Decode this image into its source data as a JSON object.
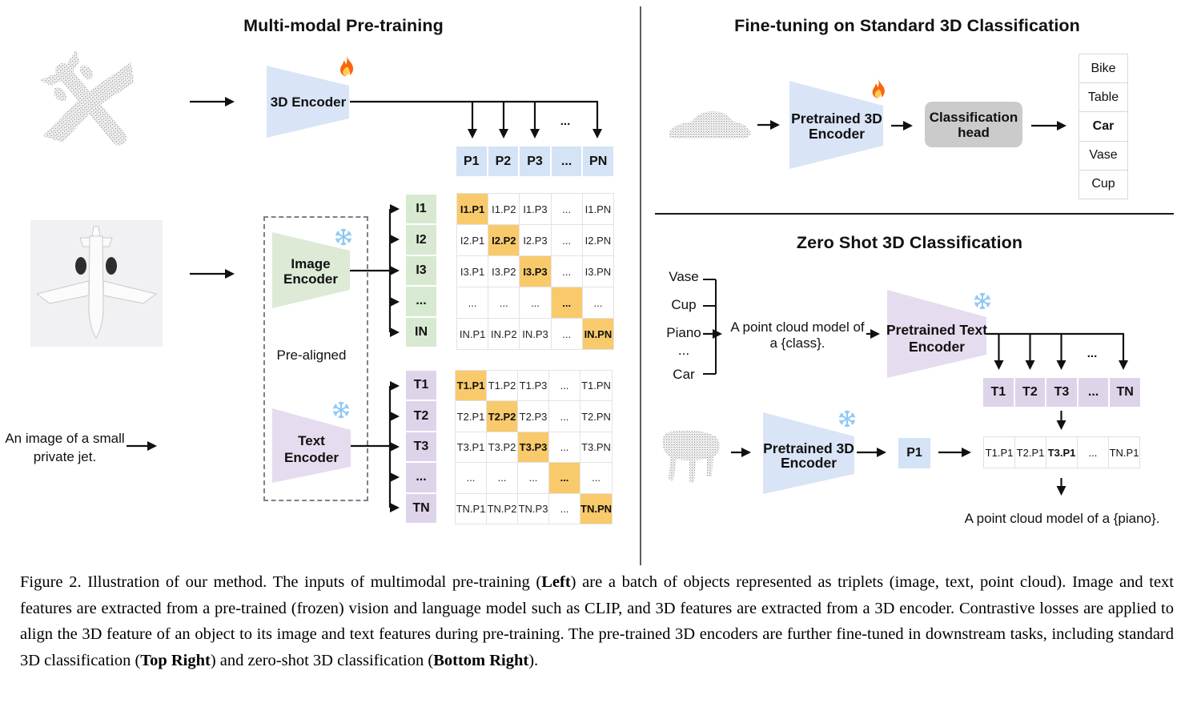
{
  "left_panel": {
    "title": "Multi-modal Pre-training",
    "encoder_3d": {
      "label": "3D Encoder"
    },
    "image_encoder": {
      "line1": "Image",
      "line2": "Encoder"
    },
    "text_encoder": {
      "line1": "Text",
      "line2": "Encoder"
    },
    "pre_aligned_label": "Pre-aligned",
    "text_input": {
      "line1": "An image of a small",
      "line2": "private jet."
    },
    "ellipsis": "...",
    "p_row": [
      "P1",
      "P2",
      "P3",
      "...",
      "PN"
    ],
    "i_column": [
      "I1",
      "I2",
      "I3",
      "...",
      "IN"
    ],
    "t_column": [
      "T1",
      "T2",
      "T3",
      "...",
      "TN"
    ],
    "i_matrix": [
      [
        "I1.P1",
        "I1.P2",
        "I1.P3",
        "...",
        "I1.PN"
      ],
      [
        "I2.P1",
        "I2.P2",
        "I2.P3",
        "...",
        "I2.PN"
      ],
      [
        "I3.P1",
        "I3.P2",
        "I3.P3",
        "...",
        "I3.PN"
      ],
      [
        "...",
        "...",
        "...",
        "...",
        "..."
      ],
      [
        "IN.P1",
        "IN.P2",
        "IN.P3",
        "...",
        "IN.PN"
      ]
    ],
    "t_matrix": [
      [
        "T1.P1",
        "T1.P2",
        "T1.P3",
        "...",
        "T1.PN"
      ],
      [
        "T2.P1",
        "T2.P2",
        "T2.P3",
        "...",
        "T2.PN"
      ],
      [
        "T3.P1",
        "T3.P2",
        "T3.P3",
        "...",
        "T3.PN"
      ],
      [
        "...",
        "...",
        "...",
        "...",
        "..."
      ],
      [
        "TN.P1",
        "TN.P2",
        "TN.P3",
        "...",
        "TN.PN"
      ]
    ],
    "highlight_diagonal": true
  },
  "top_right_panel": {
    "title": "Fine-tuning on Standard 3D Classification",
    "encoder": {
      "line1": "Pretrained 3D",
      "line2": "Encoder"
    },
    "class_head": {
      "line1": "Classification",
      "line2": "head"
    },
    "classes": [
      {
        "label": "Bike",
        "highlight": false
      },
      {
        "label": "Table",
        "highlight": false
      },
      {
        "label": "Car",
        "highlight": true
      },
      {
        "label": "Vase",
        "highlight": false
      },
      {
        "label": "Cup",
        "highlight": false
      }
    ]
  },
  "bottom_right_panel": {
    "title": "Zero Shot 3D Classification",
    "class_words": [
      "Vase",
      "Cup",
      "Piano",
      "...",
      "Car"
    ],
    "prompt": {
      "line1": "A point cloud model of",
      "line2": "a {class}."
    },
    "text_encoder": {
      "line1": "Pretrained Text",
      "line2": "Encoder"
    },
    "encoder_3d": {
      "line1": "Pretrained 3D",
      "line2": "Encoder"
    },
    "p1_label": "P1",
    "ellipsis": "...",
    "t_row": [
      "T1",
      "T2",
      "T3",
      "...",
      "TN"
    ],
    "result_row": [
      {
        "label": "T1.P1",
        "highlight": false
      },
      {
        "label": "T2.P1",
        "highlight": false
      },
      {
        "label": "T3.P1",
        "highlight": true
      },
      {
        "label": "...",
        "highlight": false
      },
      {
        "label": "TN.P1",
        "highlight": false
      }
    ],
    "result_caption": "A point cloud model of a {piano}."
  },
  "caption": {
    "segments": [
      {
        "text": "Figure 2. Illustration of our method. The inputs of multimodal pre-training (",
        "bold": false
      },
      {
        "text": "Left",
        "bold": true
      },
      {
        "text": ") are a batch of objects represented as triplets (image, text, point cloud).  Image and text features are extracted from a pre-trained (frozen) vision and language model such as CLIP, and 3D features are extracted from a 3D encoder.  Contrastive losses are applied to align the 3D feature of an object to its image and text features during pre-training.  The pre-trained 3D encoders are further fine-tuned in downstream tasks, including standard 3D classification (",
        "bold": false
      },
      {
        "text": "Top Right",
        "bold": true
      },
      {
        "text": ") and zero-shot 3D classification (",
        "bold": false
      },
      {
        "text": "Bottom Right",
        "bold": true
      },
      {
        "text": ").",
        "bold": false
      }
    ]
  },
  "icons": {
    "trainable": "fire-icon",
    "frozen": "snowflake-icon",
    "inputs": [
      "airplane-point-cloud",
      "airplane-photo",
      "car-point-cloud",
      "piano-point-cloud"
    ]
  },
  "colors": {
    "highlight_orange": "#f9ca6b",
    "encoder_blue": "#d9e5f6",
    "image_green": "#dcead6",
    "text_purple": "#e6dcef",
    "cell_blue": "#d4e3f6",
    "cell_green": "#d8e9d2",
    "cell_purple": "#ded4ea",
    "head_gray": "#cbcbcb",
    "flame": "#fa650f",
    "snowflake": "#8fc7f1"
  }
}
